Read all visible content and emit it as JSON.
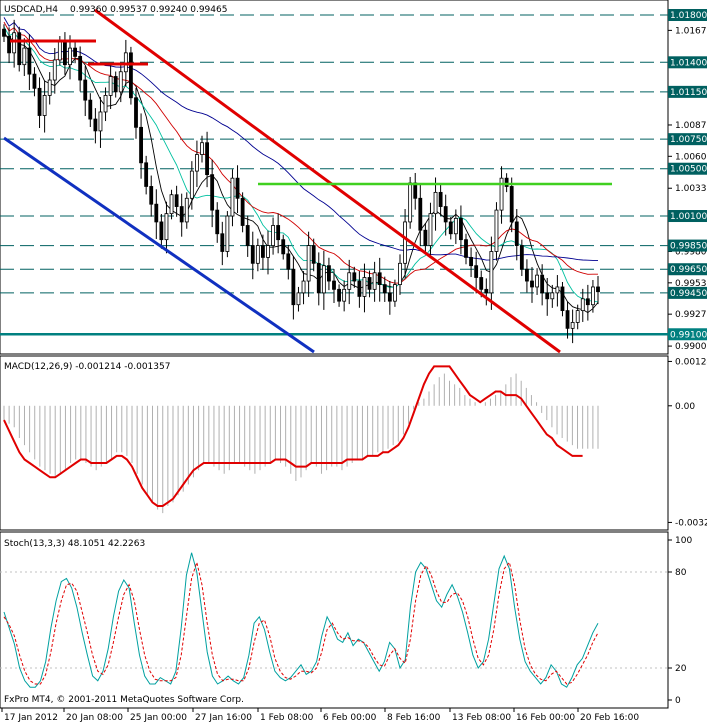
{
  "chart_data": [
    {
      "type": "candlestick",
      "panel": "price",
      "header": {
        "symbol_tf": "USDCAD,H4",
        "ohlc": "0.99360 0.99537 0.99240 0.99465"
      },
      "ylim": [
        0.9895,
        1.0191
      ],
      "y_ticks": [
        "1.01670",
        "1.00870",
        "1.00605",
        "1.00335",
        "0.99800",
        "0.99535",
        "0.99270",
        "0.99000"
      ],
      "level_lines": [
        {
          "label": "1.01800",
          "value": 1.018
        },
        {
          "label": "1.01400",
          "value": 1.014
        },
        {
          "label": "1.01150",
          "value": 1.0115
        },
        {
          "label": "1.00750",
          "value": 1.0075
        },
        {
          "label": "1.00500",
          "value": 1.005
        },
        {
          "label": "1.00100",
          "value": 1.001
        },
        {
          "label": "0.99850",
          "value": 0.9985
        },
        {
          "label": "0.99650",
          "value": 0.9965
        },
        {
          "label": "0.99450",
          "value": 0.9945
        }
      ],
      "support_line": {
        "label": "0.99100",
        "value": 0.991,
        "color": "#008080"
      },
      "close_series": [
        1.0162,
        1.0148,
        1.0165,
        1.0138,
        1.0152,
        1.013,
        1.0118,
        1.0095,
        1.0112,
        1.0125,
        1.0142,
        1.0158,
        1.0138,
        1.0152,
        1.0145,
        1.0125,
        1.0108,
        1.0092,
        1.0082,
        1.0098,
        1.0112,
        1.0128,
        1.0115,
        1.0132,
        1.0148,
        1.011,
        1.0085,
        1.0055,
        1.0035,
        1.002,
        1.0005,
        0.999,
        1.0012,
        1.0028,
        1.0018,
        1.0005,
        1.0025,
        1.0048,
        1.0062,
        1.0072,
        1.0045,
        1.0015,
        0.9995,
        0.998,
        1.001,
        1.0042,
        1.0025,
        1.0002,
        0.9985,
        0.997,
        0.9985,
        0.9975,
        0.9985,
        1.0002,
        0.999,
        0.9978,
        0.9965,
        0.9935,
        0.9945,
        0.9955,
        0.9985,
        0.997,
        0.9945,
        0.9968,
        0.9955,
        0.9948,
        0.9938,
        0.9948,
        0.9962,
        0.9955,
        0.9942,
        0.9958,
        0.9948,
        0.9962,
        0.9952,
        0.9945,
        0.9938,
        0.9952,
        0.997,
        1.0005,
        1.0038,
        1.0025,
        0.9998,
        0.9985,
        1.0012,
        1.003,
        1.0018,
        1.0005,
        0.9995,
        1.0008,
        0.999,
        0.9975,
        0.9968,
        0.9958,
        0.9948,
        0.9945,
        0.998,
        1.0015,
        1.0042,
        1.0035,
        1.0005,
        0.9985,
        0.9965,
        0.9955,
        0.995,
        0.996,
        0.9945,
        0.994,
        0.9945,
        0.995,
        0.993,
        0.9915,
        0.992,
        0.993,
        0.994,
        0.9935,
        0.995,
        0.9946
      ],
      "moving_averages": [
        {
          "color": "#000000"
        },
        {
          "color": "#00c0a0"
        },
        {
          "color": "#d00000"
        },
        {
          "color": "#000090"
        }
      ],
      "trendlines": [
        {
          "color": "#e00000"
        },
        {
          "color": "#1030c0"
        },
        {
          "color": "#40d020"
        },
        {
          "color": "#e00000"
        },
        {
          "color": "#e00000"
        }
      ]
    },
    {
      "type": "bar",
      "panel": "macd",
      "title": "MACD(12,26,9) -0.001214 -0.001357",
      "ylim": [
        -0.00336,
        0.00128
      ],
      "y_ticks": [
        "0.00124",
        "0.00",
        "-0.00326"
      ],
      "histogram": [
        -0.0004,
        -0.0005,
        -0.0006,
        -0.0009,
        -0.0011,
        -0.0013,
        -0.0015,
        -0.0017,
        -0.0018,
        -0.0019,
        -0.002,
        -0.0019,
        -0.0018,
        -0.0016,
        -0.0015,
        -0.0015,
        -0.0016,
        -0.0017,
        -0.0018,
        -0.0017,
        -0.0016,
        -0.0015,
        -0.0013,
        -0.0013,
        -0.0014,
        -0.0016,
        -0.0019,
        -0.0022,
        -0.0025,
        -0.0027,
        -0.0029,
        -0.003,
        -0.0028,
        -0.0027,
        -0.0025,
        -0.0024,
        -0.0022,
        -0.002,
        -0.0018,
        -0.0016,
        -0.0016,
        -0.0017,
        -0.0018,
        -0.0019,
        -0.0018,
        -0.0016,
        -0.0016,
        -0.0017,
        -0.0018,
        -0.0019,
        -0.0018,
        -0.0017,
        -0.0016,
        -0.0015,
        -0.0016,
        -0.0017,
        -0.0019,
        -0.0021,
        -0.002,
        -0.0018,
        -0.0016,
        -0.0017,
        -0.0019,
        -0.0018,
        -0.0017,
        -0.0017,
        -0.0018,
        -0.0017,
        -0.0016,
        -0.0015,
        -0.0015,
        -0.0014,
        -0.0014,
        -0.0013,
        -0.0013,
        -0.0012,
        -0.0011,
        -0.001,
        -0.0008,
        -0.0005,
        -0.0001,
        0.0001,
        0.0002,
        0.0004,
        0.0006,
        0.0008,
        0.0009,
        0.0007,
        0.0006,
        0.0005,
        0.0003,
        0.0002,
        0.0001,
        0.0,
        0.0001,
        0.0002,
        0.0003,
        0.0004,
        0.0006,
        0.0008,
        0.0009,
        0.0007,
        0.0005,
        0.0003,
        0.0001,
        -0.0002,
        -0.0004,
        -0.0006,
        -0.0008,
        -0.0009,
        -0.001,
        -0.0011,
        -0.0012,
        -0.0012,
        -0.0012,
        -0.0012,
        -0.0012
      ],
      "signal": [
        -0.0004,
        -0.0007,
        -0.001,
        -0.0013,
        -0.0015,
        -0.0016,
        -0.0017,
        -0.0018,
        -0.0019,
        -0.002,
        -0.002,
        -0.0019,
        -0.0018,
        -0.0017,
        -0.0016,
        -0.0015,
        -0.0015,
        -0.0016,
        -0.0016,
        -0.0016,
        -0.0016,
        -0.0015,
        -0.0014,
        -0.0014,
        -0.0015,
        -0.0017,
        -0.002,
        -0.0023,
        -0.0025,
        -0.0027,
        -0.0028,
        -0.0028,
        -0.0027,
        -0.0026,
        -0.0024,
        -0.0022,
        -0.002,
        -0.0018,
        -0.0017,
        -0.0016,
        -0.0016,
        -0.0016,
        -0.0016,
        -0.0016,
        -0.0016,
        -0.0016,
        -0.0016,
        -0.0016,
        -0.0016,
        -0.0016,
        -0.0016,
        -0.0016,
        -0.0016,
        -0.0015,
        -0.0015,
        -0.0015,
        -0.0016,
        -0.0017,
        -0.0017,
        -0.0017,
        -0.0016,
        -0.0016,
        -0.0016,
        -0.0016,
        -0.0016,
        -0.0016,
        -0.0016,
        -0.0015,
        -0.0015,
        -0.0015,
        -0.0015,
        -0.0014,
        -0.0014,
        -0.0014,
        -0.0013,
        -0.0013,
        -0.0012,
        -0.0011,
        -0.0009,
        -0.0006,
        -0.0002,
        0.0002,
        0.0006,
        0.0009,
        0.0011,
        0.0011,
        0.0011,
        0.0011,
        0.0009,
        0.0007,
        0.0005,
        0.0003,
        0.0002,
        0.0001,
        0.0002,
        0.0003,
        0.0004,
        0.0004,
        0.0003,
        0.0003,
        0.0003,
        0.0002,
        0.0,
        -0.0002,
        -0.0004,
        -0.0006,
        -0.0008,
        -0.0009,
        -0.0011,
        -0.0012,
        -0.0013,
        -0.0014,
        -0.0014,
        -0.0014
      ],
      "colors": {
        "histogram": "#b0b0b0",
        "signal": "#e00000"
      }
    },
    {
      "type": "line",
      "panel": "stochastic",
      "title": "Stoch(13,3,3) 48.1051 42.2263",
      "ylim": [
        0,
        100
      ],
      "y_ticks": [
        "100",
        "80",
        "20",
        "0"
      ],
      "levels": [
        80,
        20
      ],
      "x_ticks": [
        "17 Jan 2012",
        "20 Jan 08:00",
        "25 Jan 00:00",
        "27 Jan 16:00",
        "1 Feb 08:00",
        "6 Feb 00:00",
        "8 Feb 16:00",
        "13 Feb 08:00",
        "16 Feb 00:00",
        "20 Feb 16:00"
      ],
      "main": [
        55,
        45,
        35,
        20,
        12,
        8,
        8,
        12,
        24,
        45,
        62,
        74,
        76,
        70,
        58,
        42,
        28,
        15,
        12,
        18,
        32,
        52,
        68,
        75,
        70,
        48,
        28,
        15,
        10,
        10,
        14,
        12,
        10,
        18,
        45,
        78,
        92,
        80,
        55,
        30,
        15,
        10,
        12,
        15,
        12,
        10,
        14,
        28,
        48,
        52,
        44,
        30,
        18,
        14,
        12,
        14,
        18,
        22,
        16,
        18,
        24,
        40,
        52,
        46,
        38,
        36,
        42,
        34,
        38,
        36,
        30,
        24,
        18,
        24,
        36,
        32,
        20,
        25,
        58,
        80,
        86,
        82,
        72,
        62,
        58,
        66,
        72,
        65,
        55,
        42,
        28,
        20,
        24,
        38,
        60,
        82,
        90,
        82,
        58,
        38,
        24,
        18,
        14,
        10,
        14,
        22,
        18,
        10,
        8,
        14,
        22,
        26,
        34,
        42,
        48
      ],
      "signal": [
        52,
        47,
        40,
        28,
        18,
        12,
        10,
        10,
        16,
        30,
        48,
        62,
        72,
        73,
        68,
        55,
        42,
        28,
        18,
        16,
        22,
        36,
        52,
        66,
        72,
        62,
        44,
        28,
        18,
        13,
        12,
        12,
        12,
        14,
        28,
        52,
        76,
        86,
        72,
        48,
        28,
        16,
        12,
        13,
        13,
        12,
        12,
        20,
        36,
        48,
        50,
        40,
        26,
        18,
        14,
        13,
        15,
        18,
        18,
        17,
        20,
        30,
        44,
        48,
        42,
        38,
        39,
        37,
        37,
        36,
        33,
        27,
        22,
        21,
        28,
        32,
        26,
        23,
        38,
        62,
        78,
        84,
        78,
        68,
        61,
        61,
        66,
        67,
        62,
        52,
        38,
        26,
        22,
        28,
        44,
        66,
        82,
        86,
        72,
        50,
        32,
        22,
        16,
        13,
        12,
        16,
        18,
        14,
        10,
        11,
        16,
        22,
        28,
        36,
        42
      ],
      "colors": {
        "main": "#00a0a0",
        "signal": "#e00000"
      }
    }
  ],
  "footer": {
    "copyright": "FxPro MT4, © 2001-2011 MetaQuotes Software Corp."
  },
  "colors": {
    "grid": "#006060",
    "background": "#ffffff",
    "bull_candle": "#ffffff",
    "bear_candle": "#000000"
  }
}
